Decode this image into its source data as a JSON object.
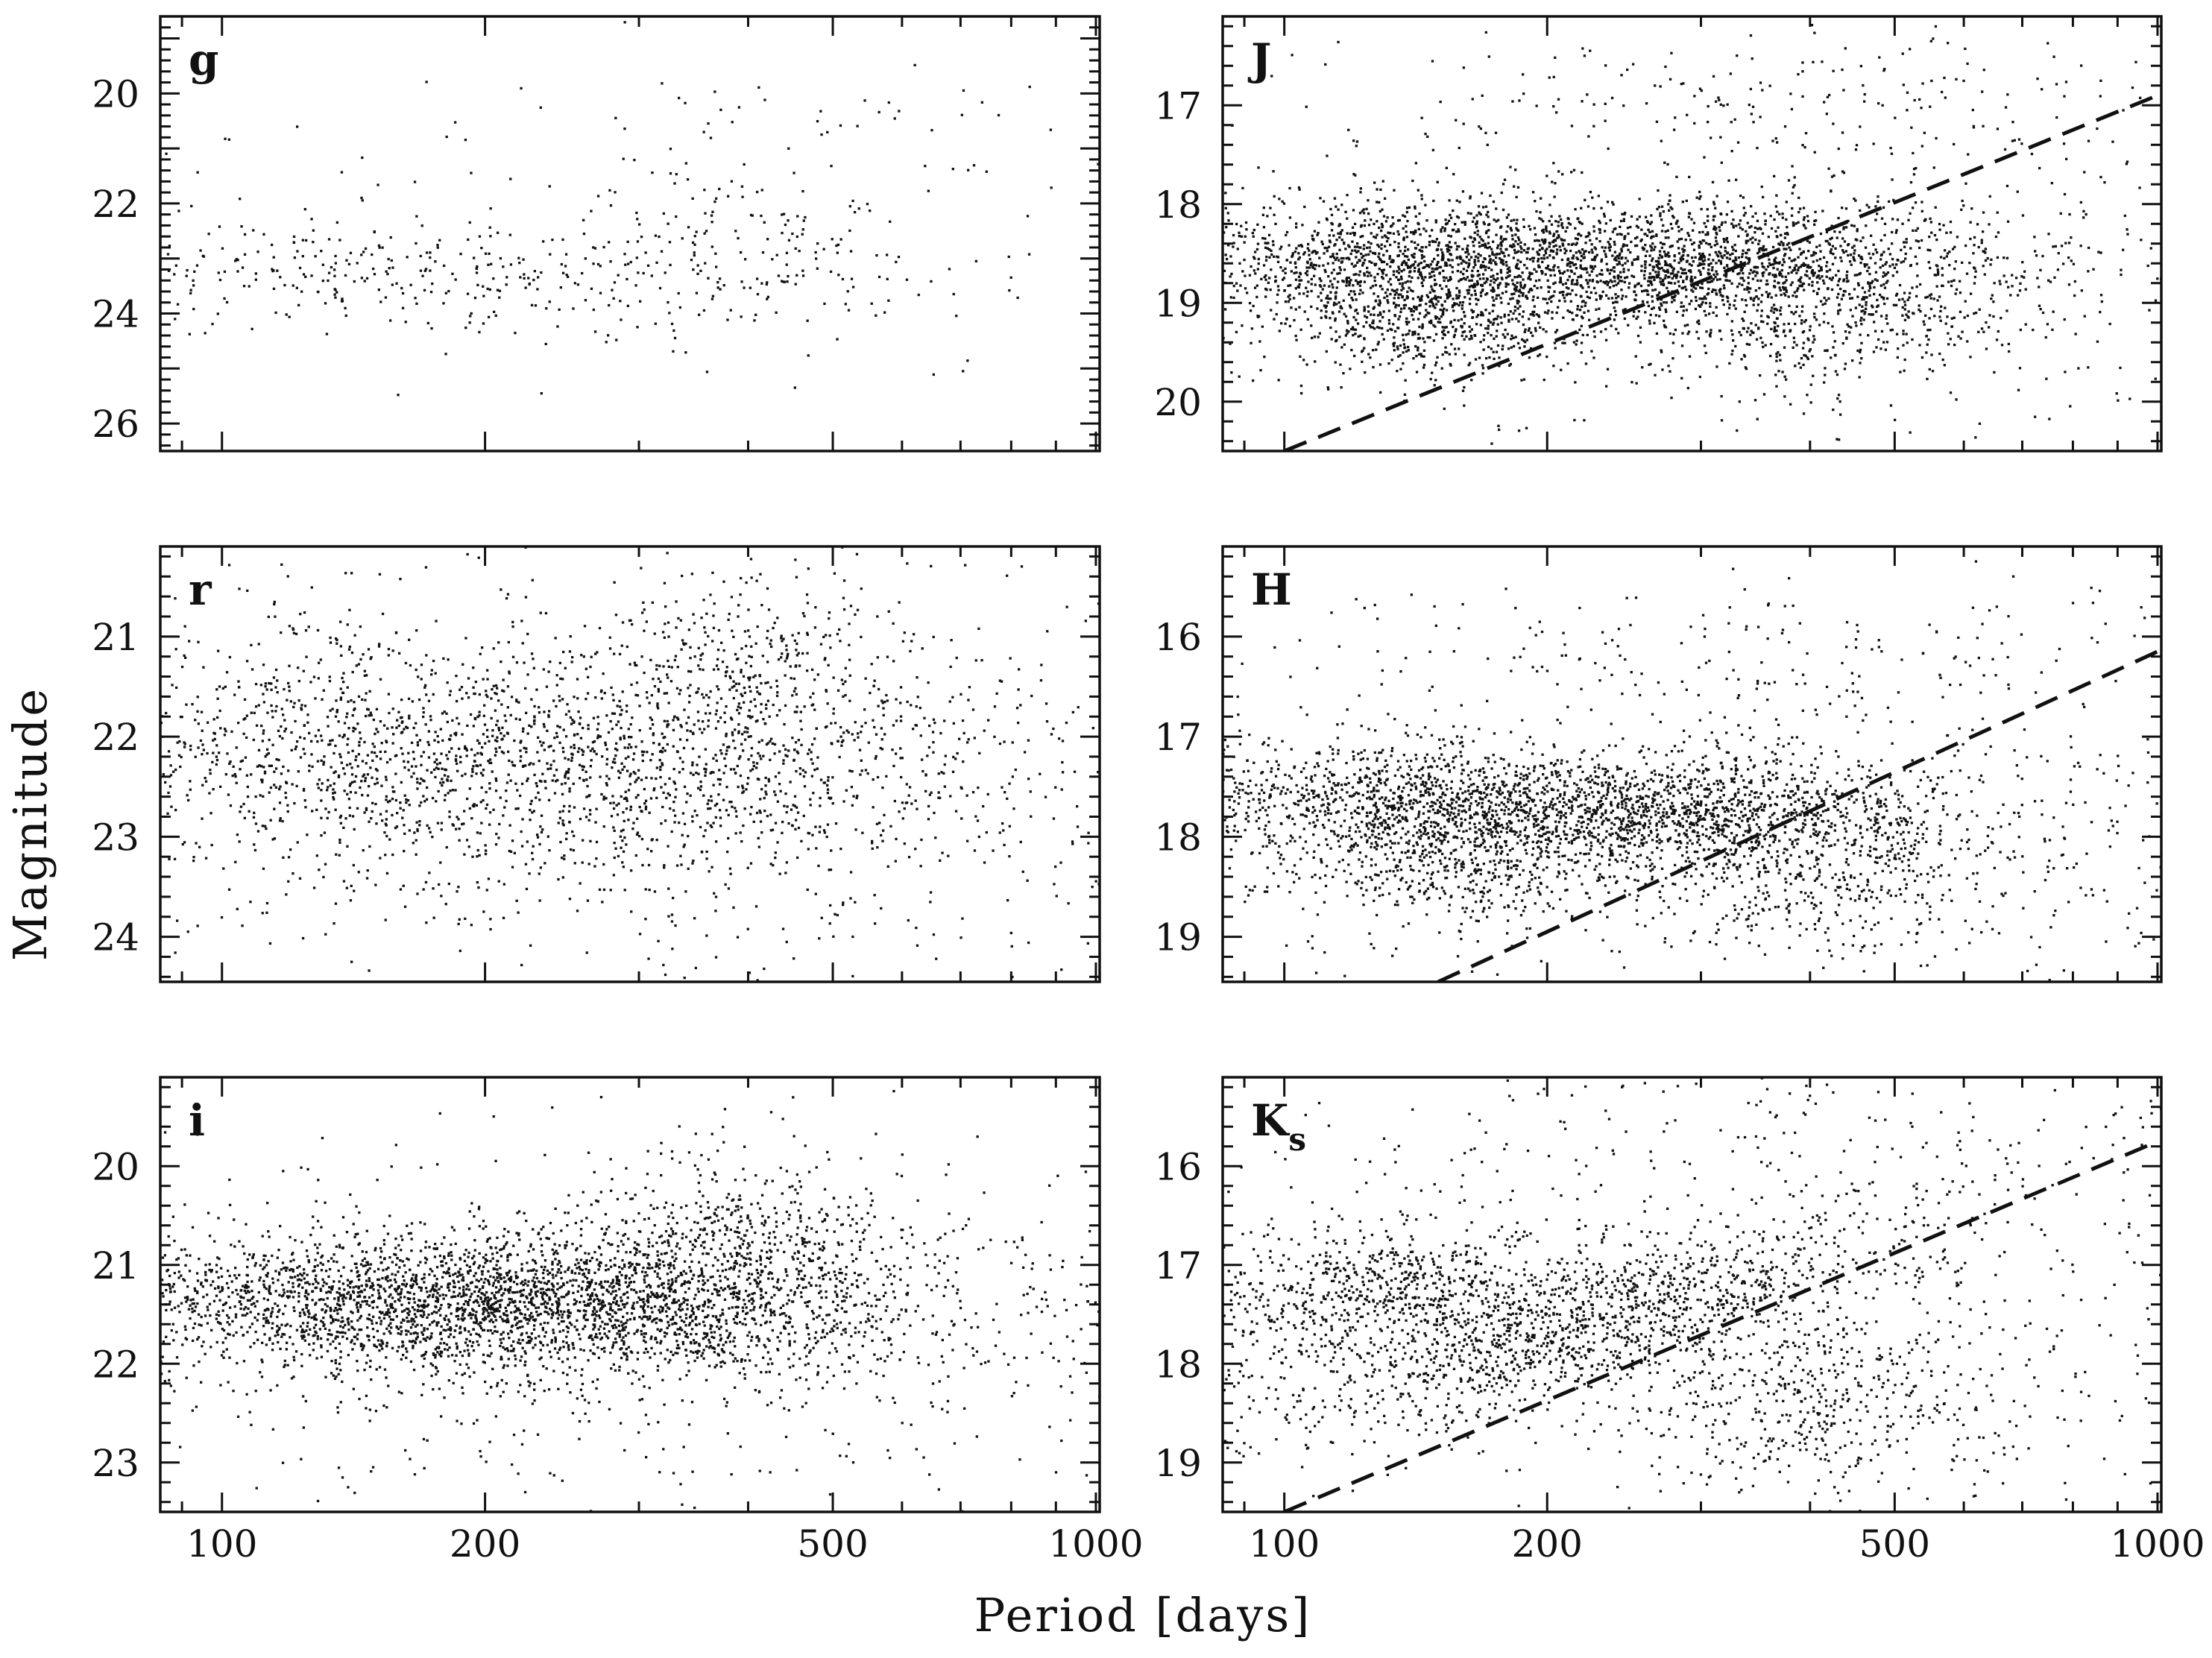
{
  "chart_data": {
    "type": "scatter",
    "xlabel": "Period [days]",
    "ylabel": "Magnitude",
    "x_scale": "log",
    "xlim": [
      85,
      1010
    ],
    "x_ticks": [
      100,
      200,
      500,
      1000
    ],
    "grid": false,
    "panels": [
      {
        "id": "g",
        "label": "g",
        "label_sub": "",
        "column": "left",
        "row": 0,
        "ylim": [
          26.5,
          18.6
        ],
        "y_ticks": [
          20,
          22,
          24,
          26
        ],
        "density": 0.28,
        "ref_line": null,
        "clusters": [
          {
            "x_center": 150,
            "x_spread": 0.16,
            "y_center": 23.2,
            "y_spread": 0.5,
            "weight": 1.0
          },
          {
            "x_center": 280,
            "x_spread": 0.22,
            "y_center": 23.4,
            "y_spread": 0.55,
            "weight": 1.0
          },
          {
            "x_center": 400,
            "x_spread": 0.08,
            "y_center": 22.6,
            "y_spread": 0.9,
            "weight": 0.6
          },
          {
            "x_center": 450,
            "x_spread": 0.25,
            "y_center": 20.6,
            "y_spread": 0.55,
            "weight": 0.25
          },
          {
            "x_center": 250,
            "x_spread": 0.5,
            "y_center": 22.5,
            "y_spread": 1.6,
            "weight": 0.5
          }
        ]
      },
      {
        "id": "r",
        "label": "r",
        "label_sub": "",
        "column": "left",
        "row": 1,
        "ylim": [
          24.45,
          20.1
        ],
        "y_ticks": [
          21,
          22,
          23,
          24
        ],
        "density": 1.4,
        "ref_line": null,
        "clusters": [
          {
            "x_center": 150,
            "x_spread": 0.2,
            "y_center": 22.1,
            "y_spread": 0.55,
            "weight": 1.0
          },
          {
            "x_center": 290,
            "x_spread": 0.25,
            "y_center": 22.3,
            "y_spread": 0.65,
            "weight": 1.1
          },
          {
            "x_center": 400,
            "x_spread": 0.08,
            "y_center": 21.5,
            "y_spread": 0.75,
            "weight": 0.45
          },
          {
            "x_center": 300,
            "x_spread": 0.5,
            "y_center": 22.6,
            "y_spread": 1.1,
            "weight": 1.0
          }
        ]
      },
      {
        "id": "i",
        "label": "i",
        "label_sub": "",
        "column": "left",
        "row": 2,
        "ylim": [
          23.5,
          19.1
        ],
        "y_ticks": [
          20,
          21,
          22,
          23
        ],
        "density": 2.1,
        "ref_line": null,
        "clusters": [
          {
            "x_center": 145,
            "x_spread": 0.18,
            "y_center": 21.35,
            "y_spread": 0.32,
            "weight": 1.0
          },
          {
            "x_center": 250,
            "x_spread": 0.18,
            "y_center": 21.4,
            "y_spread": 0.35,
            "weight": 1.2
          },
          {
            "x_center": 400,
            "x_spread": 0.1,
            "y_center": 21.0,
            "y_spread": 0.55,
            "weight": 0.5
          },
          {
            "x_center": 280,
            "x_spread": 0.5,
            "y_center": 21.6,
            "y_spread": 0.85,
            "weight": 0.9
          }
        ]
      },
      {
        "id": "J",
        "label": "J",
        "label_sub": "",
        "column": "right",
        "row": 0,
        "ylim": [
          20.5,
          16.1
        ],
        "y_ticks": [
          17,
          18,
          19,
          20
        ],
        "density": 2.1,
        "ref_line": {
          "x1": 100,
          "y1": 20.5,
          "x2": 1000,
          "y2": 16.9
        },
        "clusters": [
          {
            "x_center": 135,
            "x_spread": 0.13,
            "y_center": 18.65,
            "y_spread": 0.35,
            "weight": 0.9
          },
          {
            "x_center": 150,
            "x_spread": 0.08,
            "y_center": 19.15,
            "y_spread": 0.3,
            "weight": 0.35
          },
          {
            "x_center": 270,
            "x_spread": 0.17,
            "y_center": 18.55,
            "y_spread": 0.3,
            "weight": 1.3
          },
          {
            "x_center": 400,
            "x_spread": 0.12,
            "y_center": 19.0,
            "y_spread": 0.45,
            "weight": 0.5
          },
          {
            "x_center": 300,
            "x_spread": 0.5,
            "y_center": 18.8,
            "y_spread": 0.7,
            "weight": 0.7
          },
          {
            "x_center": 400,
            "x_spread": 0.3,
            "y_center": 17.0,
            "y_spread": 0.4,
            "weight": 0.2
          }
        ]
      },
      {
        "id": "H",
        "label": "H",
        "label_sub": "",
        "column": "right",
        "row": 1,
        "ylim": [
          19.45,
          15.1
        ],
        "y_ticks": [
          16,
          17,
          18,
          19
        ],
        "density": 1.9,
        "ref_line": {
          "x1": 150,
          "y1": 19.45,
          "x2": 1000,
          "y2": 16.15
        },
        "clusters": [
          {
            "x_center": 133,
            "x_spread": 0.12,
            "y_center": 17.65,
            "y_spread": 0.32,
            "weight": 0.8
          },
          {
            "x_center": 160,
            "x_spread": 0.08,
            "y_center": 18.3,
            "y_spread": 0.3,
            "weight": 0.35
          },
          {
            "x_center": 260,
            "x_spread": 0.16,
            "y_center": 17.75,
            "y_spread": 0.28,
            "weight": 1.2
          },
          {
            "x_center": 400,
            "x_spread": 0.12,
            "y_center": 18.3,
            "y_spread": 0.45,
            "weight": 0.5
          },
          {
            "x_center": 300,
            "x_spread": 0.5,
            "y_center": 17.9,
            "y_spread": 0.65,
            "weight": 0.7
          },
          {
            "x_center": 400,
            "x_spread": 0.3,
            "y_center": 16.1,
            "y_spread": 0.4,
            "weight": 0.2
          }
        ]
      },
      {
        "id": "Ks",
        "label": "K",
        "label_sub": "s",
        "column": "right",
        "row": 2,
        "ylim": [
          19.5,
          15.1
        ],
        "y_ticks": [
          16,
          17,
          18,
          19
        ],
        "density": 1.5,
        "ref_line": {
          "x1": 100,
          "y1": 19.5,
          "x2": 1000,
          "y2": 15.75
        },
        "clusters": [
          {
            "x_center": 135,
            "x_spread": 0.13,
            "y_center": 17.3,
            "y_spread": 0.35,
            "weight": 0.75
          },
          {
            "x_center": 230,
            "x_spread": 0.2,
            "y_center": 17.6,
            "y_spread": 0.35,
            "weight": 1.1,
            "slope": -2.3
          },
          {
            "x_center": 400,
            "x_spread": 0.12,
            "y_center": 18.4,
            "y_spread": 0.5,
            "weight": 0.45
          },
          {
            "x_center": 300,
            "x_spread": 0.5,
            "y_center": 17.6,
            "y_spread": 0.75,
            "weight": 0.6
          },
          {
            "x_center": 400,
            "x_spread": 0.3,
            "y_center": 15.8,
            "y_spread": 0.45,
            "weight": 0.2
          }
        ]
      }
    ]
  }
}
